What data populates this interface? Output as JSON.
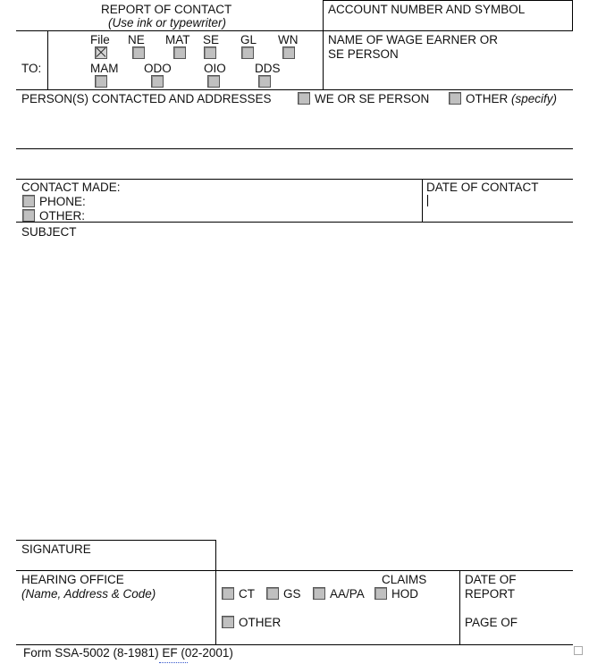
{
  "header": {
    "title": "REPORT OF CONTACT",
    "subtitle": "(Use ink or typewriter)",
    "account_label": "ACCOUNT NUMBER AND SYMBOL"
  },
  "to": {
    "label": "TO:",
    "options": [
      {
        "label": "File",
        "checked": true
      },
      {
        "label": "NE",
        "checked": false
      },
      {
        "label": "MAT",
        "checked": false
      },
      {
        "label": "SE",
        "checked": false
      },
      {
        "label": "GL",
        "checked": false
      },
      {
        "label": "WN",
        "checked": false
      },
      {
        "label": "MAM",
        "checked": false
      },
      {
        "label": "ODO",
        "checked": false
      },
      {
        "label": "OIO",
        "checked": false
      },
      {
        "label": "DDS",
        "checked": false
      }
    ]
  },
  "wage_earner": {
    "line1": "NAME OF WAGE EARNER OR",
    "line2": "SE PERSON"
  },
  "persons": {
    "label": "PERSON(S) CONTACTED AND ADDRESSES",
    "we_label": "WE OR SE PERSON",
    "other_label": "OTHER",
    "other_hint": "(specify)"
  },
  "contact": {
    "label": "CONTACT MADE:",
    "phone_label": "PHONE:",
    "other_label": "OTHER:",
    "date_label": "DATE OF CONTACT"
  },
  "subject": {
    "label": "SUBJECT"
  },
  "signature": {
    "label": "SIGNATURE"
  },
  "hearing": {
    "label": "HEARING OFFICE",
    "hint": "(Name, Address & Code)"
  },
  "claims": {
    "label": "CLAIMS",
    "options": [
      "CT",
      "GS",
      "AA/PA",
      "HOD"
    ],
    "other_label": "OTHER"
  },
  "report": {
    "date_line1": "DATE OF",
    "date_line2": "REPORT",
    "page_label": "PAGE OF"
  },
  "footer": {
    "form_id": "Form SSA-5002 (8-1981) EF (02-2001)"
  }
}
